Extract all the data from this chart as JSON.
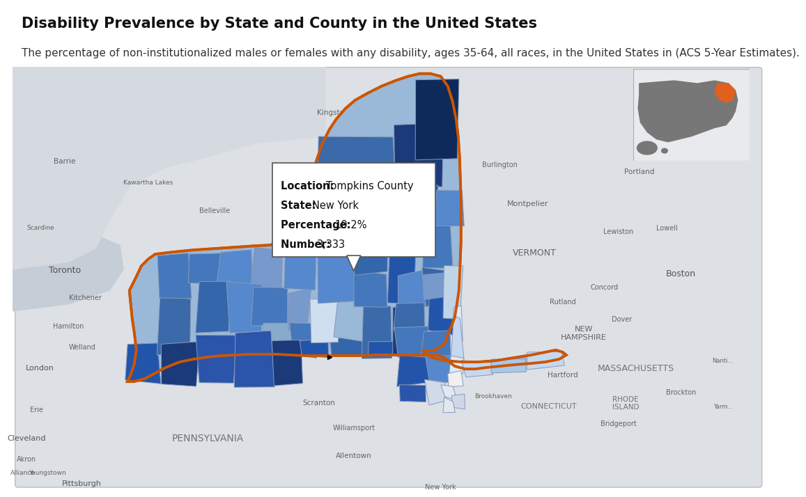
{
  "title": "Disability Prevalence by State and County in the United States",
  "subtitle": "The percentage of non-institutionalized males or females with any disability, ages 35-64, all races, in the United States in (ACS 5-Year Estimates).",
  "title_fontsize": 15,
  "subtitle_fontsize": 11,
  "title_color": "#111111",
  "subtitle_color": "#333333",
  "background_color": "#ffffff",
  "figure_width": 10.8,
  "figure_height": 6.93,
  "tooltip": {
    "location": "Tompkins County",
    "state": "New York",
    "percentage": "10.2%",
    "number": "3,333"
  },
  "ny_outline_color": "#CC5500",
  "map_bg_color": "#e0e4e8",
  "map_tile_color": "#dde2e8",
  "water_color": "#c8d4dc",
  "land_outside_color": "#d8dde3"
}
